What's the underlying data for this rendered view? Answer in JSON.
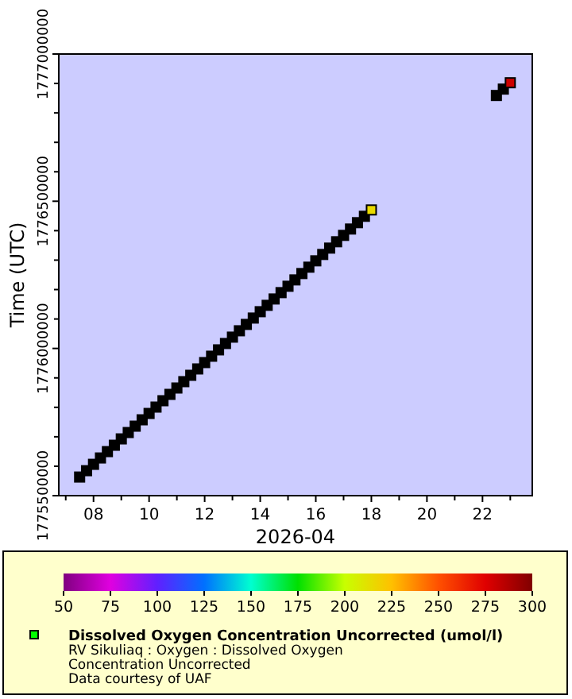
{
  "chart_data": {
    "type": "scatter",
    "xlabel": "2026-04",
    "ylabel": "Time (UTC)",
    "clabel": "Dissolved Oxygen Concentration Uncorrected (umol/l)",
    "annotations": [
      "RV Sikuliaq : Oxygen : Dissolved Oxygen Concentration Uncorrected",
      "Data courtesy of UAF"
    ],
    "x": [
      "2026-04-07T12:00",
      "2026-04-07T18:00",
      "2026-04-08T00:00",
      "2026-04-08T06:00",
      "2026-04-08T12:00",
      "2026-04-08T18:00",
      "2026-04-09T00:00",
      "2026-04-09T06:00",
      "2026-04-09T12:00",
      "2026-04-09T18:00",
      "2026-04-10T00:00",
      "2026-04-10T06:00",
      "2026-04-10T12:00",
      "2026-04-10T18:00",
      "2026-04-11T00:00",
      "2026-04-11T06:00",
      "2026-04-11T12:00",
      "2026-04-11T18:00",
      "2026-04-12T00:00",
      "2026-04-12T06:00",
      "2026-04-12T12:00",
      "2026-04-12T18:00",
      "2026-04-13T00:00",
      "2026-04-13T06:00",
      "2026-04-13T12:00",
      "2026-04-13T18:00",
      "2026-04-14T00:00",
      "2026-04-14T06:00",
      "2026-04-14T12:00",
      "2026-04-14T18:00",
      "2026-04-15T00:00",
      "2026-04-15T06:00",
      "2026-04-15T12:00",
      "2026-04-15T18:00",
      "2026-04-16T00:00",
      "2026-04-16T06:00",
      "2026-04-16T12:00",
      "2026-04-16T18:00",
      "2026-04-17T00:00",
      "2026-04-17T06:00",
      "2026-04-17T12:00",
      "2026-04-17T18:00",
      "2026-04-18T00:00",
      "2026-04-22T12:00",
      "2026-04-22T18:00",
      "2026-04-23T00:00"
    ],
    "values": [
      1775563200,
      1775584800,
      1775606400,
      1775628000,
      1775649600,
      1775671200,
      1775692800,
      1775714400,
      1775736000,
      1775757600,
      1775779200,
      1775800800,
      1775822400,
      1775844000,
      1775865600,
      1775887200,
      1775908800,
      1775930400,
      1775952000,
      1775973600,
      1775995200,
      1776016800,
      1776038400,
      1776060000,
      1776081600,
      1776103200,
      1776124800,
      1776146400,
      1776168000,
      1776189600,
      1776211200,
      1776232800,
      1776254400,
      1776276000,
      1776297600,
      1776319200,
      1776340800,
      1776362400,
      1776384000,
      1776405600,
      1776427200,
      1776448800,
      1776470400,
      1776859200,
      1776880800,
      1776902400
    ],
    "cvalues": [
      null,
      null,
      null,
      null,
      null,
      null,
      null,
      null,
      null,
      null,
      null,
      null,
      null,
      null,
      null,
      null,
      null,
      null,
      null,
      null,
      null,
      null,
      null,
      null,
      null,
      null,
      null,
      null,
      null,
      null,
      null,
      null,
      null,
      null,
      null,
      null,
      null,
      null,
      null,
      null,
      null,
      null,
      215,
      null,
      null,
      280
    ],
    "marker": "square",
    "clim": [
      50,
      300
    ],
    "cticks": [
      50,
      75,
      100,
      125,
      150,
      175,
      200,
      225,
      250,
      275,
      300
    ],
    "xlim": [
      "2026-04-06T18:00",
      "2026-04-23T19:00"
    ],
    "xticks": [
      {
        "value": "2026-04-07",
        "label": null
      },
      {
        "value": "2026-04-08",
        "label": "08"
      },
      {
        "value": "2026-04-09",
        "label": null
      },
      {
        "value": "2026-04-10",
        "label": "10"
      },
      {
        "value": "2026-04-11",
        "label": null
      },
      {
        "value": "2026-04-12",
        "label": "12"
      },
      {
        "value": "2026-04-13",
        "label": null
      },
      {
        "value": "2026-04-14",
        "label": "14"
      },
      {
        "value": "2026-04-15",
        "label": null
      },
      {
        "value": "2026-04-16",
        "label": "16"
      },
      {
        "value": "2026-04-17",
        "label": null
      },
      {
        "value": "2026-04-18",
        "label": "18"
      },
      {
        "value": "2026-04-19",
        "label": null
      },
      {
        "value": "2026-04-20",
        "label": "20"
      },
      {
        "value": "2026-04-21",
        "label": null
      },
      {
        "value": "2026-04-22",
        "label": "22"
      },
      {
        "value": "2026-04-23",
        "label": null
      }
    ],
    "ylim": [
      1775500000,
      1777000000
    ],
    "yticks": [
      1775500000,
      {
        "value": 1775600000,
        "label": null
      },
      {
        "value": 1775700000,
        "label": null
      },
      {
        "value": 1775800000,
        "label": null
      },
      {
        "value": 1775900000,
        "label": null
      },
      1776000000,
      {
        "value": 1776100000,
        "label": null
      },
      {
        "value": 1776200000,
        "label": null
      },
      {
        "value": 1776300000,
        "label": null
      },
      {
        "value": 1776400000,
        "label": null
      },
      1776500000,
      {
        "value": 1776600000,
        "label": null
      },
      {
        "value": 1776700000,
        "label": null
      },
      {
        "value": 1776800000,
        "label": null
      },
      {
        "value": 1776900000,
        "label": null
      },
      1777000000
    ],
    "grid": false
  }
}
